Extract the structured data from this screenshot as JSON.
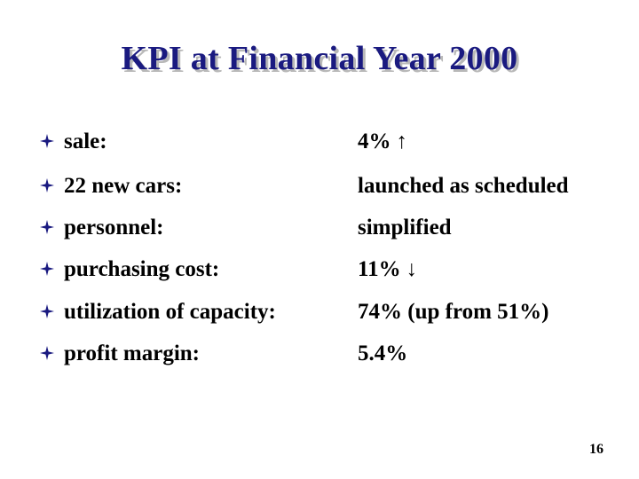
{
  "slide": {
    "title": "KPI at Financial Year 2000",
    "bullet_icon": "four-point-star-icon",
    "bullet_color": "#1a1a80",
    "title_color": "#1a1a80",
    "items": [
      {
        "label": "sale:",
        "value": "4%",
        "trend": "up",
        "trend_symbol": "↑"
      },
      {
        "label": "22 new cars:",
        "value": "launched as scheduled"
      },
      {
        "label": "personnel:",
        "value": "simplified"
      },
      {
        "label": "purchasing cost:",
        "value": "11%",
        "trend": "down",
        "trend_symbol": "↓"
      },
      {
        "label": "utilization of capacity:",
        "value": "74% (up from 51%)"
      },
      {
        "label": "profit margin:",
        "value": "5.4%"
      }
    ],
    "page_number": "16"
  }
}
